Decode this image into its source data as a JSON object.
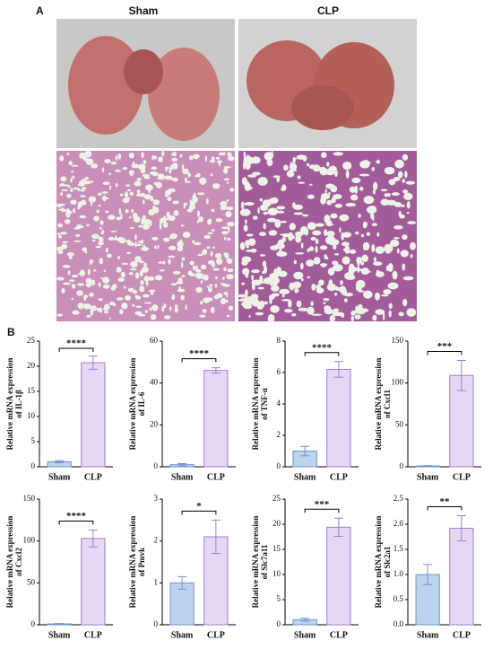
{
  "panels": {
    "a": "A",
    "b": "B",
    "columns": [
      "Sham",
      "CLP"
    ]
  },
  "chart_data": [
    {
      "type": "bar",
      "y_label": [
        "Relative mRNA expression",
        "of IL-1β"
      ],
      "categories": [
        "Sham",
        "CLP"
      ],
      "values": [
        1.0,
        20.7
      ],
      "errors": [
        0.2,
        1.3
      ],
      "colors": [
        "#bcd3ee",
        "#e6d8f5"
      ],
      "edge_colors": [
        "#6f93c9",
        "#9d7dd0"
      ],
      "ylim": [
        0,
        25
      ],
      "yticks": [
        0,
        5,
        10,
        15,
        20,
        25
      ],
      "significance": "****"
    },
    {
      "type": "bar",
      "y_label": [
        "Relative mRNA expression",
        "of IL-6"
      ],
      "categories": [
        "Sham",
        "CLP"
      ],
      "values": [
        1.0,
        46
      ],
      "errors": [
        0.5,
        1.3
      ],
      "colors": [
        "#bcd3ee",
        "#e6d8f5"
      ],
      "edge_colors": [
        "#6f93c9",
        "#9d7dd0"
      ],
      "ylim": [
        0,
        60
      ],
      "yticks": [
        0,
        20,
        40,
        60
      ],
      "significance": "****"
    },
    {
      "type": "bar",
      "y_label": [
        "Relative mRNA expression",
        "of TNF-α"
      ],
      "categories": [
        "Sham",
        "CLP"
      ],
      "values": [
        1.0,
        6.2
      ],
      "errors": [
        0.3,
        0.5
      ],
      "colors": [
        "#bcd3ee",
        "#e6d8f5"
      ],
      "edge_colors": [
        "#6f93c9",
        "#9d7dd0"
      ],
      "ylim": [
        0,
        8
      ],
      "yticks": [
        0,
        2,
        4,
        6,
        8
      ],
      "significance": "****"
    },
    {
      "type": "bar",
      "y_label": [
        "Relative mRNA expression",
        "of Cxcl1"
      ],
      "categories": [
        "Sham",
        "CLP"
      ],
      "values": [
        1,
        109
      ],
      "errors": [
        0.5,
        18
      ],
      "colors": [
        "#bcd3ee",
        "#e6d8f5"
      ],
      "edge_colors": [
        "#6f93c9",
        "#9d7dd0"
      ],
      "ylim": [
        0,
        150
      ],
      "yticks": [
        0,
        50,
        100,
        150
      ],
      "significance": "***"
    },
    {
      "type": "bar",
      "y_label": [
        "Relative mRNA expression",
        "of Cxcl2"
      ],
      "categories": [
        "Sham",
        "CLP"
      ],
      "values": [
        1,
        103
      ],
      "errors": [
        0.5,
        10
      ],
      "colors": [
        "#bcd3ee",
        "#e6d8f5"
      ],
      "edge_colors": [
        "#6f93c9",
        "#9d7dd0"
      ],
      "ylim": [
        0,
        150
      ],
      "yticks": [
        0,
        50,
        100,
        150
      ],
      "significance": "****"
    },
    {
      "type": "bar",
      "y_label": [
        "Relative mRNA expression",
        "of Pmvk"
      ],
      "categories": [
        "Sham",
        "CLP"
      ],
      "values": [
        1.0,
        2.1
      ],
      "errors": [
        0.15,
        0.4
      ],
      "colors": [
        "#bcd3ee",
        "#e6d8f5"
      ],
      "edge_colors": [
        "#6f93c9",
        "#9d7dd0"
      ],
      "ylim": [
        0,
        3
      ],
      "yticks": [
        0,
        1,
        2,
        3
      ],
      "significance": "*"
    },
    {
      "type": "bar",
      "y_label": [
        "Relative mRNA expression",
        "of Slc7a11"
      ],
      "categories": [
        "Sham",
        "CLP"
      ],
      "values": [
        1.0,
        19.4
      ],
      "errors": [
        0.3,
        1.8
      ],
      "colors": [
        "#bcd3ee",
        "#e6d8f5"
      ],
      "edge_colors": [
        "#6f93c9",
        "#9d7dd0"
      ],
      "ylim": [
        0,
        25
      ],
      "yticks": [
        0,
        5,
        10,
        15,
        20,
        25
      ],
      "significance": "***"
    },
    {
      "type": "bar",
      "y_label": [
        "Relative mRNA expression",
        "of Slc2a1"
      ],
      "categories": [
        "Sham",
        "CLP"
      ],
      "values": [
        1.0,
        1.92
      ],
      "errors": [
        0.2,
        0.25
      ],
      "colors": [
        "#bcd3ee",
        "#e6d8f5"
      ],
      "edge_colors": [
        "#6f93c9",
        "#9d7dd0"
      ],
      "ylim": [
        0,
        2.5
      ],
      "yticks": [
        {
          "value": 0,
          "label": "0.0"
        },
        0.5,
        {
          "value": 1,
          "label": "1.0"
        },
        1.5,
        {
          "value": 2,
          "label": "2.0"
        },
        2.5
      ],
      "significance": "**"
    }
  ]
}
